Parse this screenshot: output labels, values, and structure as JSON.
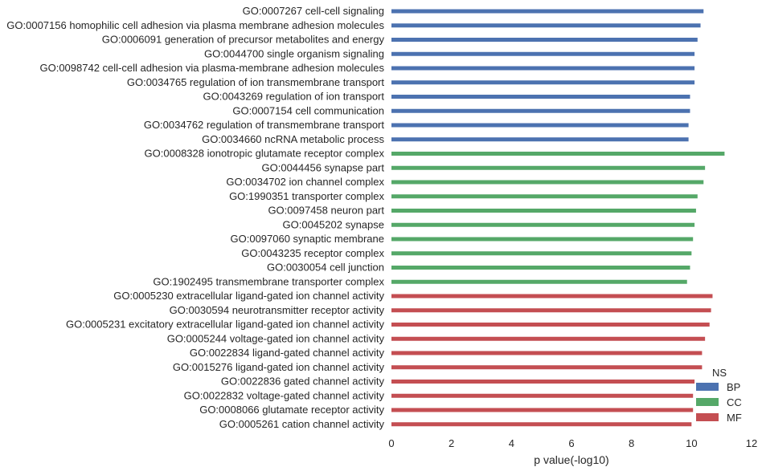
{
  "chart_data": {
    "type": "bar",
    "orientation": "horizontal",
    "xlabel": "p value(-log10)",
    "ylabel": "",
    "xlim": [
      0,
      12
    ],
    "xticks": [
      0,
      2,
      4,
      6,
      8,
      10,
      12
    ],
    "grid": false,
    "legend": {
      "title": "NS",
      "placement": "bottom-right",
      "entries": [
        {
          "name": "BP",
          "color": "#4c72b0"
        },
        {
          "name": "CC",
          "color": "#55a868"
        },
        {
          "name": "MF",
          "color": "#c44e52"
        }
      ]
    },
    "categories": [
      {
        "label": "GO:0007267 cell-cell signaling",
        "value": 10.4,
        "group": "BP"
      },
      {
        "label": "GO:0007156 homophilic cell adhesion via plasma membrane adhesion molecules",
        "value": 10.3,
        "group": "BP"
      },
      {
        "label": "GO:0006091 generation of precursor metabolites and energy",
        "value": 10.2,
        "group": "BP"
      },
      {
        "label": "GO:0044700 single organism signaling",
        "value": 10.1,
        "group": "BP"
      },
      {
        "label": "GO:0098742 cell-cell adhesion via plasma-membrane adhesion molecules",
        "value": 10.1,
        "group": "BP"
      },
      {
        "label": "GO:0034765 regulation of ion transmembrane transport",
        "value": 10.1,
        "group": "BP"
      },
      {
        "label": "GO:0043269 regulation of ion transport",
        "value": 9.95,
        "group": "BP"
      },
      {
        "label": "GO:0007154 cell communication",
        "value": 9.95,
        "group": "BP"
      },
      {
        "label": "GO:0034762 regulation of transmembrane transport",
        "value": 9.9,
        "group": "BP"
      },
      {
        "label": "GO:0034660 ncRNA metabolic process",
        "value": 9.9,
        "group": "BP"
      },
      {
        "label": "GO:0008328 ionotropic glutamate receptor complex",
        "value": 11.1,
        "group": "CC"
      },
      {
        "label": "GO:0044456 synapse part",
        "value": 10.45,
        "group": "CC"
      },
      {
        "label": "GO:0034702 ion channel complex",
        "value": 10.4,
        "group": "CC"
      },
      {
        "label": "GO:1990351 transporter complex",
        "value": 10.2,
        "group": "CC"
      },
      {
        "label": "GO:0097458 neuron part",
        "value": 10.15,
        "group": "CC"
      },
      {
        "label": "GO:0045202 synapse",
        "value": 10.1,
        "group": "CC"
      },
      {
        "label": "GO:0097060 synaptic membrane",
        "value": 10.05,
        "group": "CC"
      },
      {
        "label": "GO:0043235 receptor complex",
        "value": 10.0,
        "group": "CC"
      },
      {
        "label": "GO:0030054 cell junction",
        "value": 9.95,
        "group": "CC"
      },
      {
        "label": "GO:1902495 transmembrane transporter complex",
        "value": 9.85,
        "group": "CC"
      },
      {
        "label": "GO:0005230 extracellular ligand-gated ion channel activity",
        "value": 10.7,
        "group": "MF"
      },
      {
        "label": "GO:0030594 neurotransmitter receptor activity",
        "value": 10.65,
        "group": "MF"
      },
      {
        "label": "GO:0005231 excitatory extracellular ligand-gated ion channel activity",
        "value": 10.6,
        "group": "MF"
      },
      {
        "label": "GO:0005244 voltage-gated ion channel activity",
        "value": 10.45,
        "group": "MF"
      },
      {
        "label": "GO:0022834 ligand-gated channel activity",
        "value": 10.35,
        "group": "MF"
      },
      {
        "label": "GO:0015276 ligand-gated ion channel activity",
        "value": 10.35,
        "group": "MF"
      },
      {
        "label": "GO:0022836 gated channel activity",
        "value": 10.1,
        "group": "MF"
      },
      {
        "label": "GO:0022832 voltage-gated channel activity",
        "value": 10.05,
        "group": "MF"
      },
      {
        "label": "GO:0008066 glutamate receptor activity",
        "value": 10.05,
        "group": "MF"
      },
      {
        "label": "GO:0005261 cation channel activity",
        "value": 10.0,
        "group": "MF"
      }
    ]
  }
}
